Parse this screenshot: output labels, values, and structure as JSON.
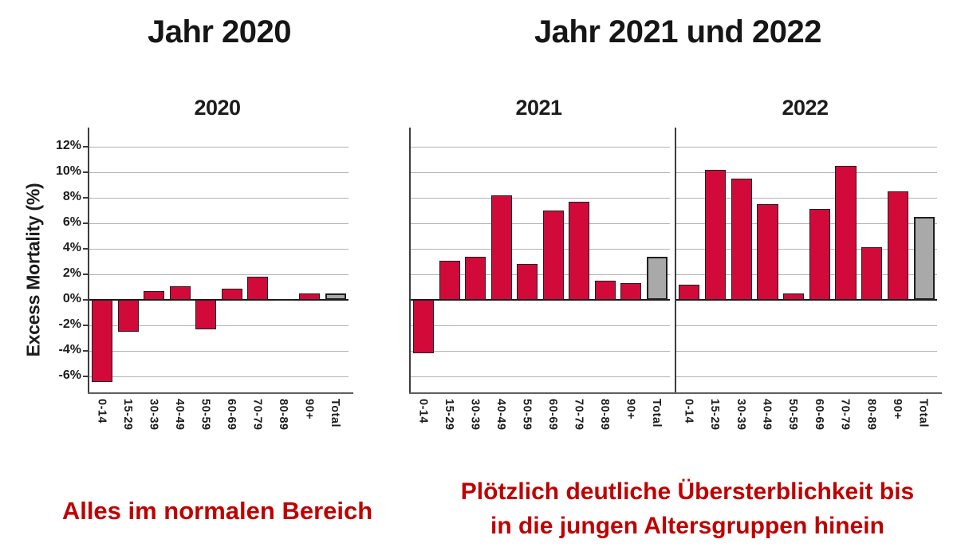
{
  "page": {
    "title_left": "Jahr 2020",
    "title_right": "Jahr 2021 und 2022",
    "caption_left": "Alles im normalen Bereich",
    "caption_right_line1": "Plötzlich deutliche Übersterblichkeit bis",
    "caption_right_line2": "in die jungen Altersgruppen hinein"
  },
  "axis": {
    "y_title": "Excess Mortality (%)",
    "y_ticks": [
      12,
      10,
      8,
      6,
      4,
      2,
      0,
      -2,
      -4,
      -6
    ],
    "y_tick_labels": [
      "12%",
      "10%",
      "8%",
      "6%",
      "4%",
      "2%",
      "0%",
      "-2%",
      "-4%",
      "-6%"
    ],
    "grid": true
  },
  "colors": {
    "bar_red": "#d10a3a",
    "bar_gray": "#a9a9a9",
    "bar_border": "#1f1f1f",
    "caption_red": "#bf0000",
    "gridline": "#b3b3b3",
    "zero_line": "#1a1a1a"
  },
  "chart_data": [
    {
      "type": "bar",
      "title": "2020",
      "ylabel": "Excess Mortality (%)",
      "ylim": [
        -7.3,
        13.5
      ],
      "show_y_axis_labels": true,
      "categories": [
        "0-14",
        "15-29",
        "30-39",
        "40-49",
        "50-59",
        "60-69",
        "70-79",
        "80-89",
        "90+",
        "Total"
      ],
      "values": [
        -6.4,
        -2.5,
        0.7,
        1.1,
        -2.3,
        0.9,
        1.8,
        0.05,
        0.5,
        0.5
      ],
      "total_bar_index": 9
    },
    {
      "type": "bar",
      "title": "2021",
      "ylabel": "Excess Mortality (%)",
      "ylim": [
        -7.3,
        13.5
      ],
      "show_y_axis_labels": false,
      "categories": [
        "0-14",
        "15-29",
        "30-39",
        "40-49",
        "50-59",
        "60-69",
        "70-79",
        "80-89",
        "90+",
        "Total"
      ],
      "values": [
        -4.2,
        3.1,
        3.4,
        8.2,
        2.8,
        7.0,
        7.7,
        1.5,
        1.3,
        3.4
      ],
      "total_bar_index": 9
    },
    {
      "type": "bar",
      "title": "2022",
      "ylabel": "Excess Mortality (%)",
      "ylim": [
        -7.3,
        13.5
      ],
      "show_y_axis_labels": false,
      "categories": [
        "0-14",
        "15-29",
        "30-39",
        "40-49",
        "50-59",
        "60-69",
        "70-79",
        "80-89",
        "90+",
        "Total"
      ],
      "values": [
        1.2,
        10.2,
        9.5,
        7.5,
        0.5,
        7.1,
        10.5,
        4.1,
        8.5,
        6.5
      ],
      "total_bar_index": 9
    }
  ]
}
